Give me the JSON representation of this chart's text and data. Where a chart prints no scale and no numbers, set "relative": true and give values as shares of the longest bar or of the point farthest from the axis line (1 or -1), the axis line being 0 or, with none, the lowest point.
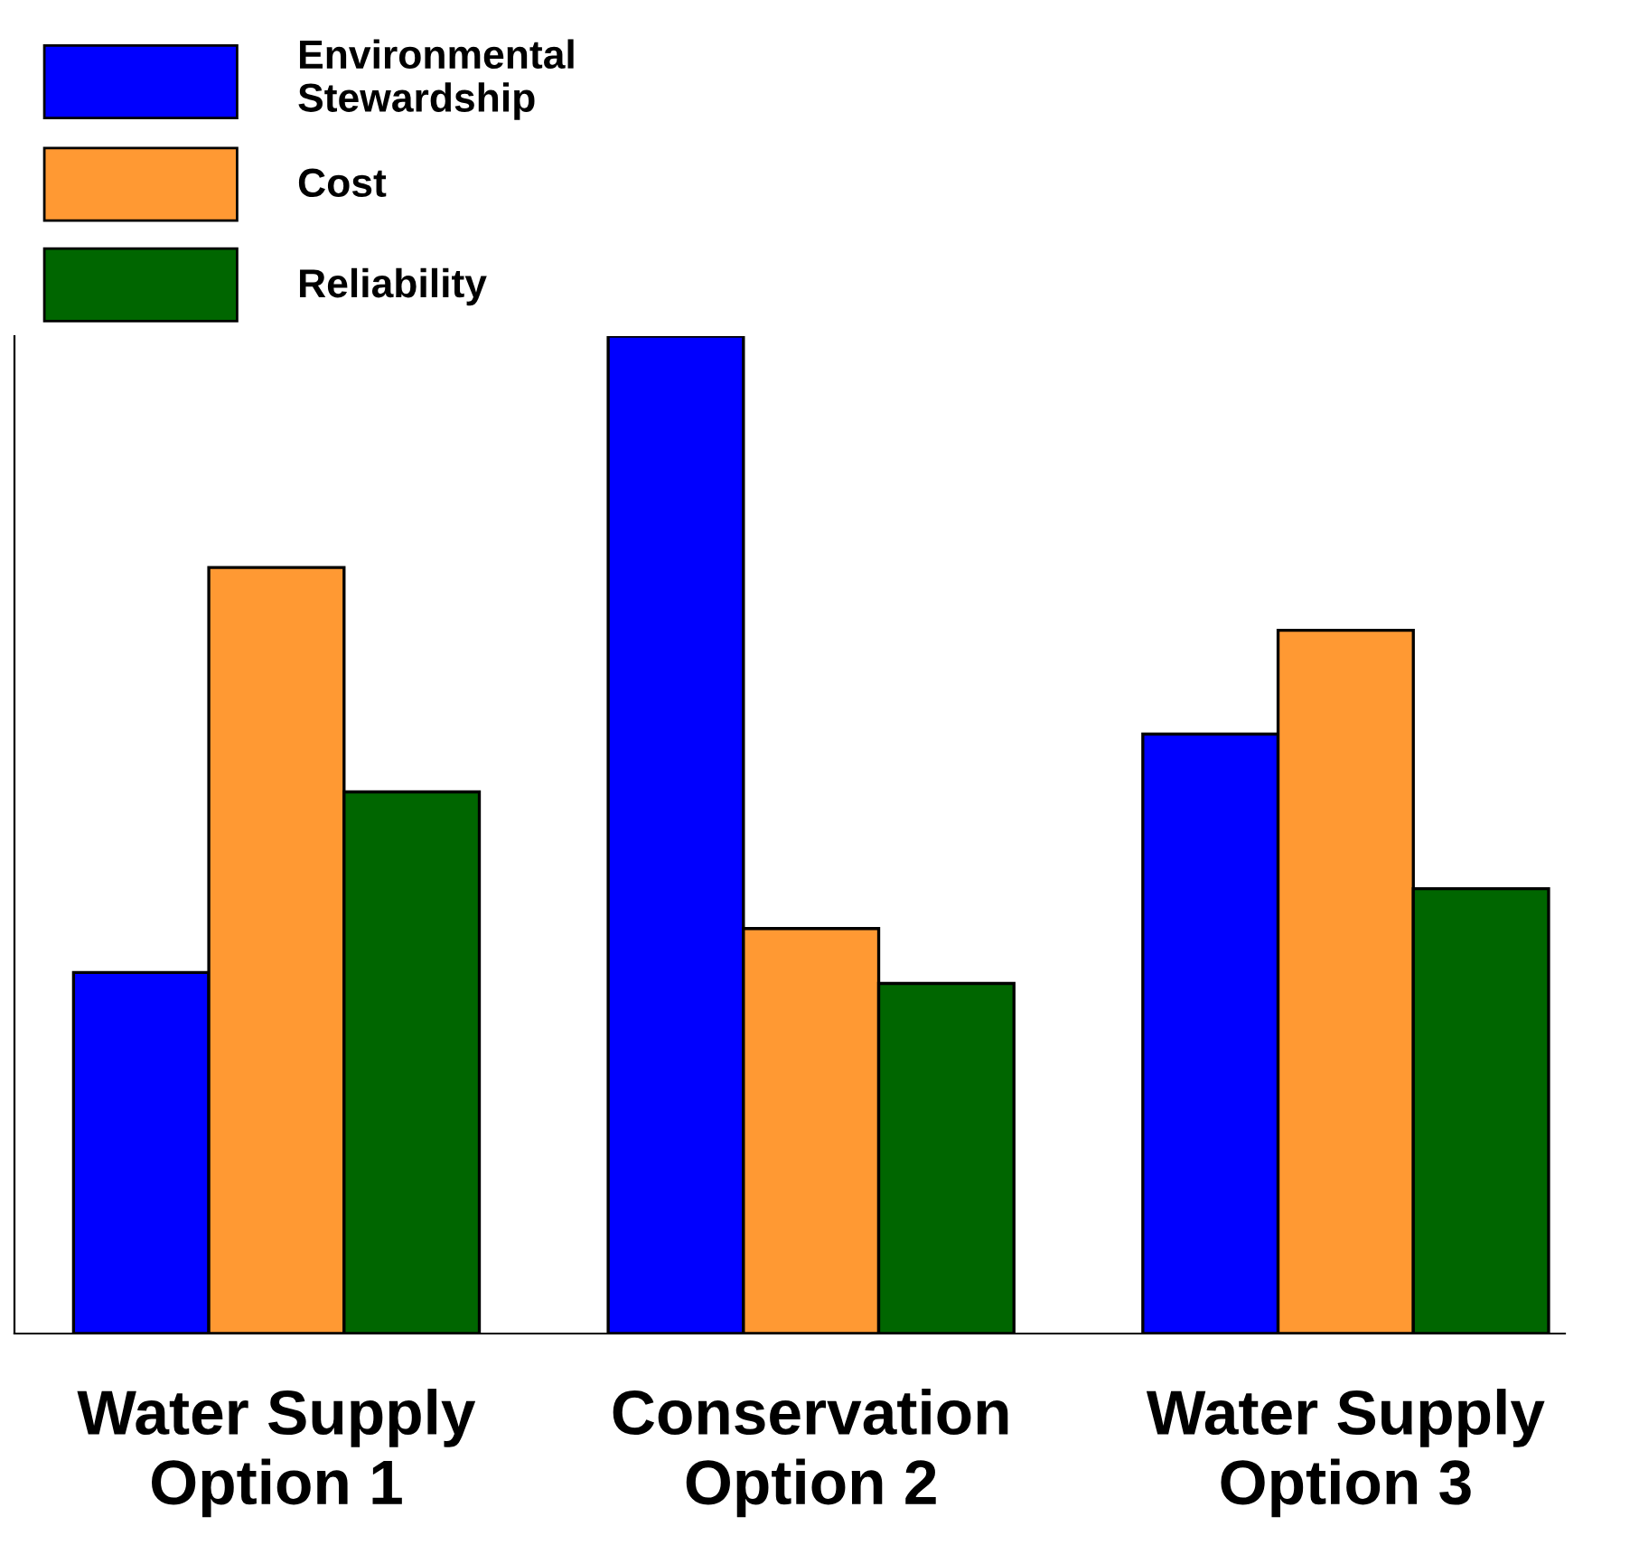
{
  "chart_data": {
    "type": "bar",
    "relative": true,
    "categories": [
      "Water Supply\nOption 1",
      "Conservation\nOption 2",
      "Water Supply\nOption 3"
    ],
    "series": [
      {
        "name": "Environmental\nStewardship",
        "color": "#0000ff",
        "values": [
          0.362,
          1,
          0.601
        ]
      },
      {
        "name": "Cost",
        "color": "#ff9933",
        "values": [
          0.768,
          0.406,
          0.705
        ]
      },
      {
        "name": "Reliability",
        "color": "#006600",
        "values": [
          0.543,
          0.351,
          0.446
        ]
      }
    ],
    "legend": "top left",
    "grid": false
  }
}
